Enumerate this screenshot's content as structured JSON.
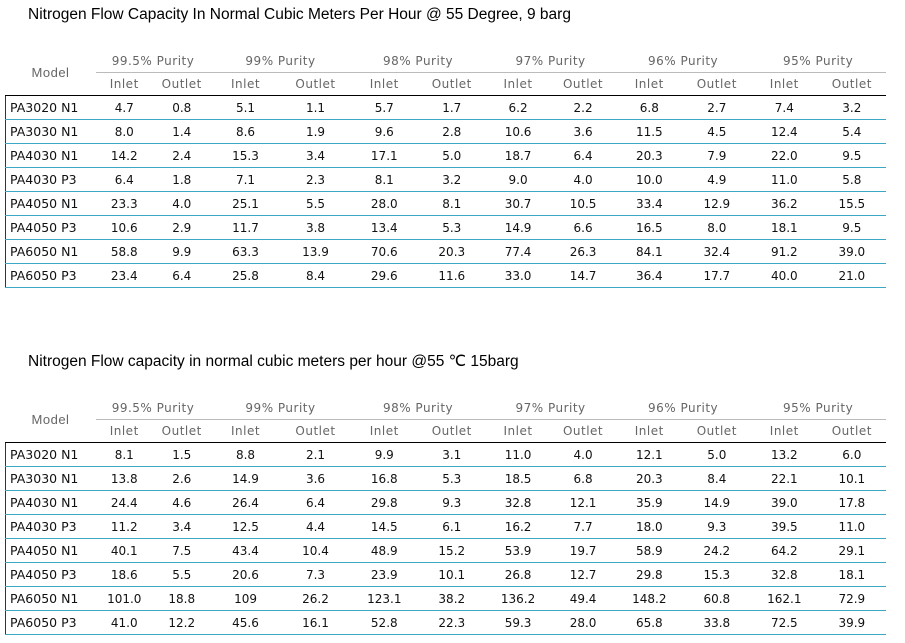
{
  "tables": [
    {
      "title": "Nitrogen Flow Capacity In Normal Cubic Meters Per Hour @ 55 Degree, 9 barg",
      "model_header": "Model",
      "purities": [
        "99.5% Purity",
        "99% Purity",
        "98% Purity",
        "97% Purity",
        "96% Purity",
        "95% Purity"
      ],
      "subheaders": [
        "Inlet",
        "Outlet"
      ],
      "rows": [
        {
          "model": "PA3020 N1",
          "values": [
            "4.7",
            "0.8",
            "5.1",
            "1.1",
            "5.7",
            "1.7",
            "6.2",
            "2.2",
            "6.8",
            "2.7",
            "7.4",
            "3.2"
          ]
        },
        {
          "model": "PA3030 N1",
          "values": [
            "8.0",
            "1.4",
            "8.6",
            "1.9",
            "9.6",
            "2.8",
            "10.6",
            "3.6",
            "11.5",
            "4.5",
            "12.4",
            "5.4"
          ]
        },
        {
          "model": "PA4030 N1",
          "values": [
            "14.2",
            "2.4",
            "15.3",
            "3.4",
            "17.1",
            "5.0",
            "18.7",
            "6.4",
            "20.3",
            "7.9",
            "22.0",
            "9.5"
          ]
        },
        {
          "model": "PA4030 P3",
          "values": [
            "6.4",
            "1.8",
            "7.1",
            "2.3",
            "8.1",
            "3.2",
            "9.0",
            "4.0",
            "10.0",
            "4.9",
            "11.0",
            "5.8"
          ]
        },
        {
          "model": "PA4050 N1",
          "values": [
            "23.3",
            "4.0",
            "25.1",
            "5.5",
            "28.0",
            "8.1",
            "30.7",
            "10.5",
            "33.4",
            "12.9",
            "36.2",
            "15.5"
          ]
        },
        {
          "model": "PA4050 P3",
          "values": [
            "10.6",
            "2.9",
            "11.7",
            "3.8",
            "13.4",
            "5.3",
            "14.9",
            "6.6",
            "16.5",
            "8.0",
            "18.1",
            "9.5"
          ]
        },
        {
          "model": "PA6050 N1",
          "values": [
            "58.8",
            "9.9",
            "63.3",
            "13.9",
            "70.6",
            "20.3",
            "77.4",
            "26.3",
            "84.1",
            "32.4",
            "91.2",
            "39.0"
          ]
        },
        {
          "model": "PA6050 P3",
          "values": [
            "23.4",
            "6.4",
            "25.8",
            "8.4",
            "29.6",
            "11.6",
            "33.0",
            "14.7",
            "36.4",
            "17.7",
            "40.0",
            "21.0"
          ]
        }
      ]
    },
    {
      "title": "Nitrogen Flow capacity in normal cubic meters per hour @55 ℃ 15barg",
      "model_header": "Model",
      "purities": [
        "99.5% Purity",
        "99% Purity",
        "98% Purity",
        "97% Purity",
        "96% Purity",
        "95% Purity"
      ],
      "subheaders": [
        "Inlet",
        "Outlet"
      ],
      "rows": [
        {
          "model": "PA3020 N1",
          "values": [
            "8.1",
            "1.5",
            "8.8",
            "2.1",
            "9.9",
            "3.1",
            "11.0",
            "4.0",
            "12.1",
            "5.0",
            "13.2",
            "6.0"
          ]
        },
        {
          "model": "PA3030 N1",
          "values": [
            "13.8",
            "2.6",
            "14.9",
            "3.6",
            "16.8",
            "5.3",
            "18.5",
            "6.8",
            "20.3",
            "8.4",
            "22.1",
            "10.1"
          ]
        },
        {
          "model": "PA4030 N1",
          "values": [
            "24.4",
            "4.6",
            "26.4",
            "6.4",
            "29.8",
            "9.3",
            "32.8",
            "12.1",
            "35.9",
            "14.9",
            "39.0",
            "17.8"
          ]
        },
        {
          "model": "PA4030 P3",
          "values": [
            "11.2",
            "3.4",
            "12.5",
            "4.4",
            "14.5",
            "6.1",
            "16.2",
            "7.7",
            "18.0",
            "9.3",
            "39.5",
            "11.0"
          ]
        },
        {
          "model": "PA4050 N1",
          "values": [
            "40.1",
            "7.5",
            "43.4",
            "10.4",
            "48.9",
            "15.2",
            "53.9",
            "19.7",
            "58.9",
            "24.2",
            "64.2",
            "29.1"
          ]
        },
        {
          "model": "PA4050 P3",
          "values": [
            "18.6",
            "5.5",
            "20.6",
            "7.3",
            "23.9",
            "10.1",
            "26.8",
            "12.7",
            "29.8",
            "15.3",
            "32.8",
            "18.1"
          ]
        },
        {
          "model": "PA6050 N1",
          "values": [
            "101.0",
            "18.8",
            "109",
            "26.2",
            "123.1",
            "38.2",
            "136.2",
            "49.4",
            "148.2",
            "60.8",
            "162.1",
            "72.9"
          ]
        },
        {
          "model": "PA6050 P3",
          "values": [
            "41.0",
            "12.2",
            "45.6",
            "16.1",
            "52.8",
            "22.3",
            "59.3",
            "28.0",
            "65.8",
            "33.8",
            "72.5",
            "39.9"
          ]
        }
      ]
    }
  ]
}
